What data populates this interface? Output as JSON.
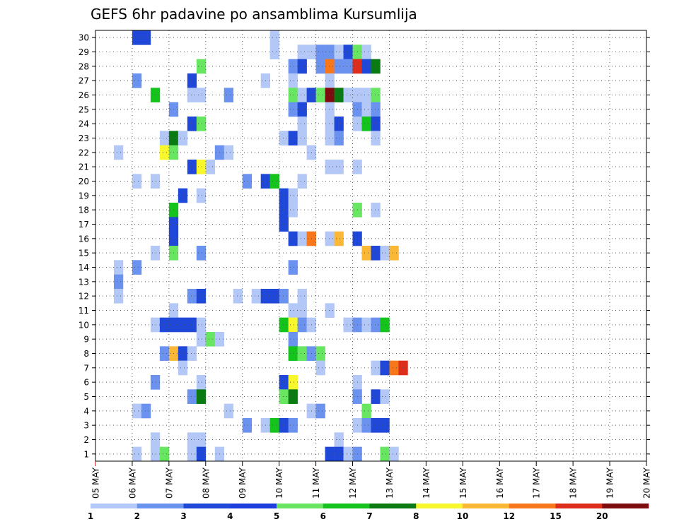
{
  "chart_data": {
    "type": "heatmap",
    "title": "GEFS 6hr padavine po ansamblima Kursumlija",
    "y_ticks": [
      "1",
      "2",
      "3",
      "4",
      "5",
      "6",
      "7",
      "8",
      "9",
      "10",
      "11",
      "12",
      "13",
      "14",
      "15",
      "16",
      "17",
      "18",
      "19",
      "20",
      "21",
      "22",
      "23",
      "24",
      "25",
      "26",
      "27",
      "28",
      "29",
      "30"
    ],
    "x_ticks": [
      "05 MAY",
      "06 MAY",
      "07 MAY",
      "08 MAY",
      "09 MAY",
      "10 MAY",
      "11 MAY",
      "12 MAY",
      "13 MAY",
      "14 MAY",
      "15 MAY",
      "16 MAY",
      "17 MAY",
      "18 MAY",
      "19 MAY",
      "20 MAY"
    ],
    "steps_per_day": 4,
    "ylim": [
      0.5,
      30.5
    ],
    "grid": true,
    "colorbar": {
      "labels": [
        "1",
        "2",
        "3",
        "4",
        "5",
        "6",
        "7",
        "8",
        "10",
        "12",
        "15",
        "20"
      ],
      "colors": [
        "#b3c8f7",
        "#6b92ee",
        "#2048d8",
        "#1f3cdc",
        "#68e662",
        "#14c41c",
        "#0a7a12",
        "#f7f72c",
        "#fbb736",
        "#f7771a",
        "#dd2e1c",
        "#7e0c0e"
      ]
    },
    "colors": {
      "1": "#b3c8f7",
      "2": "#6b92ee",
      "3": "#2048d8",
      "5": "#68e662",
      "6": "#14c41c",
      "7": "#0a7a12",
      "8": "#f7f72c",
      "10": "#fbb736",
      "12": "#f7771a",
      "15": "#dd2e1c",
      "20": "#7e0c0e"
    },
    "cells": [
      [
        30,
        5,
        3
      ],
      [
        30,
        6,
        3
      ],
      [
        30,
        20,
        1
      ],
      [
        29,
        20,
        1
      ],
      [
        29,
        23,
        1
      ],
      [
        29,
        24,
        1
      ],
      [
        29,
        25,
        2
      ],
      [
        29,
        26,
        2
      ],
      [
        29,
        27,
        1
      ],
      [
        29,
        28,
        3
      ],
      [
        29,
        29,
        5
      ],
      [
        29,
        30,
        1
      ],
      [
        28,
        12,
        5
      ],
      [
        28,
        22,
        2
      ],
      [
        28,
        23,
        3
      ],
      [
        28,
        25,
        2
      ],
      [
        28,
        26,
        12
      ],
      [
        28,
        27,
        2
      ],
      [
        28,
        28,
        2
      ],
      [
        28,
        29,
        15
      ],
      [
        28,
        30,
        3
      ],
      [
        28,
        31,
        7
      ],
      [
        27,
        5,
        2
      ],
      [
        27,
        11,
        3
      ],
      [
        27,
        19,
        1
      ],
      [
        27,
        22,
        1
      ],
      [
        27,
        26,
        1
      ],
      [
        26,
        7,
        6
      ],
      [
        26,
        11,
        1
      ],
      [
        26,
        12,
        1
      ],
      [
        26,
        15,
        2
      ],
      [
        26,
        22,
        5
      ],
      [
        26,
        23,
        1
      ],
      [
        26,
        24,
        3
      ],
      [
        26,
        25,
        5
      ],
      [
        26,
        26,
        20
      ],
      [
        26,
        27,
        7
      ],
      [
        26,
        28,
        1
      ],
      [
        26,
        29,
        1
      ],
      [
        26,
        30,
        1
      ],
      [
        26,
        31,
        5
      ],
      [
        25,
        9,
        2
      ],
      [
        25,
        22,
        2
      ],
      [
        25,
        23,
        3
      ],
      [
        25,
        26,
        1
      ],
      [
        25,
        29,
        2
      ],
      [
        25,
        30,
        1
      ],
      [
        25,
        31,
        2
      ],
      [
        24,
        11,
        3
      ],
      [
        24,
        12,
        5
      ],
      [
        24,
        23,
        1
      ],
      [
        24,
        26,
        1
      ],
      [
        24,
        27,
        3
      ],
      [
        24,
        29,
        1
      ],
      [
        24,
        30,
        6
      ],
      [
        24,
        31,
        3
      ],
      [
        23,
        8,
        1
      ],
      [
        23,
        9,
        7
      ],
      [
        23,
        10,
        1
      ],
      [
        23,
        21,
        1
      ],
      [
        23,
        22,
        3
      ],
      [
        23,
        23,
        1
      ],
      [
        23,
        26,
        1
      ],
      [
        23,
        27,
        2
      ],
      [
        23,
        31,
        1
      ],
      [
        22,
        3,
        1
      ],
      [
        22,
        8,
        8
      ],
      [
        22,
        9,
        5
      ],
      [
        22,
        14,
        2
      ],
      [
        22,
        15,
        1
      ],
      [
        22,
        24,
        1
      ],
      [
        21,
        11,
        3
      ],
      [
        21,
        12,
        8
      ],
      [
        21,
        13,
        1
      ],
      [
        21,
        26,
        1
      ],
      [
        21,
        27,
        1
      ],
      [
        21,
        29,
        1
      ],
      [
        20,
        5,
        1
      ],
      [
        20,
        7,
        1
      ],
      [
        20,
        17,
        2
      ],
      [
        20,
        19,
        3
      ],
      [
        20,
        20,
        6
      ],
      [
        20,
        23,
        1
      ],
      [
        19,
        10,
        3
      ],
      [
        19,
        12,
        1
      ],
      [
        19,
        21,
        3
      ],
      [
        19,
        22,
        1
      ],
      [
        18,
        9,
        6
      ],
      [
        18,
        21,
        3
      ],
      [
        18,
        22,
        1
      ],
      [
        18,
        29,
        5
      ],
      [
        18,
        31,
        1
      ],
      [
        17,
        9,
        3
      ],
      [
        17,
        21,
        3
      ],
      [
        16,
        9,
        3
      ],
      [
        16,
        22,
        3
      ],
      [
        16,
        23,
        1
      ],
      [
        16,
        24,
        12
      ],
      [
        16,
        26,
        1
      ],
      [
        16,
        27,
        10
      ],
      [
        16,
        29,
        3
      ],
      [
        15,
        7,
        1
      ],
      [
        15,
        9,
        5
      ],
      [
        15,
        12,
        2
      ],
      [
        15,
        30,
        10
      ],
      [
        15,
        31,
        3
      ],
      [
        15,
        32,
        1
      ],
      [
        15,
        33,
        10
      ],
      [
        14,
        3,
        1
      ],
      [
        14,
        5,
        2
      ],
      [
        14,
        22,
        2
      ],
      [
        13,
        3,
        2
      ],
      [
        12,
        3,
        1
      ],
      [
        12,
        11,
        2
      ],
      [
        12,
        12,
        3
      ],
      [
        12,
        16,
        1
      ],
      [
        12,
        18,
        1
      ],
      [
        12,
        19,
        3
      ],
      [
        12,
        20,
        3
      ],
      [
        12,
        21,
        2
      ],
      [
        12,
        23,
        1
      ],
      [
        11,
        9,
        1
      ],
      [
        11,
        22,
        1
      ],
      [
        11,
        23,
        1
      ],
      [
        11,
        26,
        1
      ],
      [
        10,
        7,
        1
      ],
      [
        10,
        8,
        3
      ],
      [
        10,
        9,
        3
      ],
      [
        10,
        10,
        3
      ],
      [
        10,
        11,
        3
      ],
      [
        10,
        12,
        1
      ],
      [
        10,
        21,
        6
      ],
      [
        10,
        22,
        8
      ],
      [
        10,
        23,
        2
      ],
      [
        10,
        24,
        1
      ],
      [
        10,
        28,
        1
      ],
      [
        10,
        29,
        2
      ],
      [
        10,
        30,
        1
      ],
      [
        10,
        31,
        2
      ],
      [
        10,
        32,
        6
      ],
      [
        9,
        12,
        1
      ],
      [
        9,
        13,
        5
      ],
      [
        9,
        14,
        1
      ],
      [
        9,
        22,
        2
      ],
      [
        8,
        8,
        2
      ],
      [
        8,
        9,
        10
      ],
      [
        8,
        10,
        3
      ],
      [
        8,
        11,
        1
      ],
      [
        8,
        22,
        6
      ],
      [
        8,
        23,
        5
      ],
      [
        8,
        24,
        2
      ],
      [
        8,
        25,
        5
      ],
      [
        7,
        10,
        1
      ],
      [
        7,
        25,
        1
      ],
      [
        7,
        31,
        1
      ],
      [
        7,
        32,
        3
      ],
      [
        7,
        33,
        12
      ],
      [
        7,
        34,
        15
      ],
      [
        6,
        7,
        2
      ],
      [
        6,
        12,
        1
      ],
      [
        6,
        21,
        3
      ],
      [
        6,
        22,
        8
      ],
      [
        6,
        29,
        1
      ],
      [
        5,
        11,
        2
      ],
      [
        5,
        12,
        7
      ],
      [
        5,
        21,
        5
      ],
      [
        5,
        22,
        7
      ],
      [
        5,
        29,
        2
      ],
      [
        5,
        31,
        3
      ],
      [
        5,
        32,
        1
      ],
      [
        4,
        5,
        1
      ],
      [
        4,
        6,
        2
      ],
      [
        4,
        15,
        1
      ],
      [
        4,
        24,
        1
      ],
      [
        4,
        25,
        2
      ],
      [
        4,
        30,
        5
      ],
      [
        3,
        17,
        2
      ],
      [
        3,
        19,
        1
      ],
      [
        3,
        20,
        6
      ],
      [
        3,
        21,
        3
      ],
      [
        3,
        22,
        2
      ],
      [
        3,
        29,
        1
      ],
      [
        3,
        30,
        2
      ],
      [
        3,
        31,
        3
      ],
      [
        3,
        32,
        3
      ],
      [
        2,
        7,
        1
      ],
      [
        2,
        11,
        1
      ],
      [
        2,
        12,
        1
      ],
      [
        2,
        27,
        1
      ],
      [
        1,
        5,
        1
      ],
      [
        1,
        7,
        1
      ],
      [
        1,
        8,
        5
      ],
      [
        1,
        11,
        1
      ],
      [
        1,
        12,
        3
      ],
      [
        1,
        14,
        1
      ],
      [
        1,
        26,
        3
      ],
      [
        1,
        27,
        3
      ],
      [
        1,
        28,
        1
      ],
      [
        1,
        29,
        2
      ],
      [
        1,
        32,
        5
      ],
      [
        1,
        33,
        1
      ]
    ]
  }
}
